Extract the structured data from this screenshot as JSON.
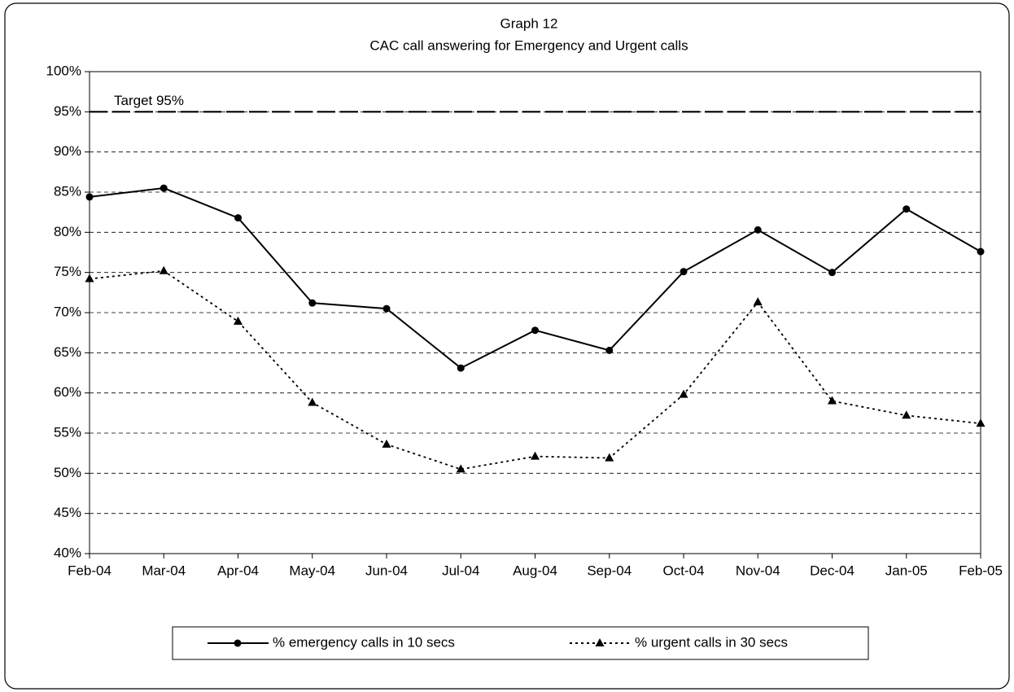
{
  "chart_data": {
    "type": "line",
    "title": "Graph 12",
    "subtitle": "CAC call answering for Emergency and Urgent calls",
    "categories": [
      "Feb-04",
      "Mar-04",
      "Apr-04",
      "May-04",
      "Jun-04",
      "Jul-04",
      "Aug-04",
      "Sep-04",
      "Oct-04",
      "Nov-04",
      "Dec-04",
      "Jan-05",
      "Feb-05"
    ],
    "series": [
      {
        "name": "% emergency calls in 10 secs",
        "color": "#000000",
        "marker": "circle",
        "dash": "solid",
        "values": [
          84.4,
          85.5,
          81.8,
          71.2,
          70.5,
          63.1,
          67.8,
          65.3,
          75.1,
          80.3,
          75.0,
          82.9,
          77.6
        ]
      },
      {
        "name": "% urgent calls in 30 secs",
        "color": "#000000",
        "marker": "triangle",
        "dash": "dotted",
        "values": [
          74.2,
          75.2,
          68.9,
          58.8,
          53.6,
          50.5,
          52.1,
          51.9,
          59.8,
          71.3,
          59.0,
          57.2,
          56.2
        ]
      }
    ],
    "annotations": [
      {
        "text": "Target 95%",
        "value": 95
      }
    ],
    "ylim": [
      40,
      100
    ],
    "yticks": [
      {
        "value": 40,
        "label": "40%"
      },
      {
        "value": 45,
        "label": "45%"
      },
      {
        "value": 50,
        "label": "50%"
      },
      {
        "value": 55,
        "label": "55%"
      },
      {
        "value": 60,
        "label": "60%"
      },
      {
        "value": 65,
        "label": "65%"
      },
      {
        "value": 70,
        "label": "70%"
      },
      {
        "value": 75,
        "label": "75%"
      },
      {
        "value": 80,
        "label": "80%"
      },
      {
        "value": 85,
        "label": "85%"
      },
      {
        "value": 90,
        "label": "90%"
      },
      {
        "value": 95,
        "label": "95%"
      },
      {
        "value": 100,
        "label": "100%"
      }
    ],
    "grid": true,
    "legend": "bottom"
  }
}
